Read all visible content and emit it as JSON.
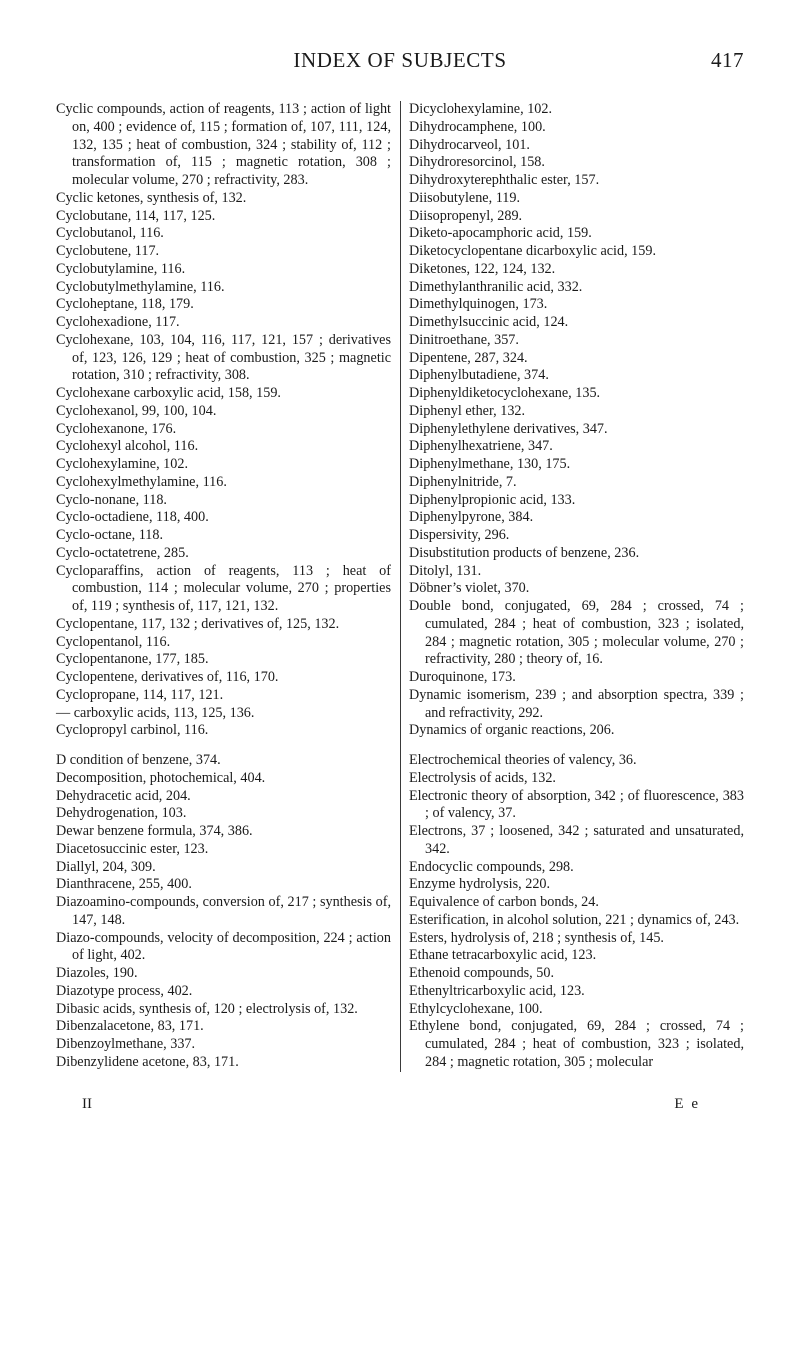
{
  "header": {
    "title": "INDEX OF SUBJECTS",
    "page_number": "417"
  },
  "footer": {
    "left": "II",
    "right": "E e"
  },
  "entries_col1": [
    "Cyclic compounds, action of reagents, 113 ; action of light on, 400 ; evi­dence of, 115 ; formation of, 107, 111, 124, 132, 135 ; heat of combus­tion, 324 ; stability of, 112 ; transfor­mation of, 115 ; magnetic rotation, 308 ; molecular volume, 270 ; refracti­vity, 283.",
    "Cyclic ketones, synthesis of, 132.",
    "Cyclobutane, 114, 117, 125.",
    "Cyclobutanol, 116.",
    "Cyclobutene, 117.",
    "Cyclobutylamine, 116.",
    "Cyclobutylmethylamine, 116.",
    "Cycloheptane, 118, 179.",
    "Cyclohexadione, 117.",
    "Cyclohexane, 103, 104, 116, 117, 121, 157 ; derivatives of, 123, 126, 129 ; heat of combustion, 325 ; magnetic rotation, 310 ; refractivity, 308.",
    "Cyclohexane carboxylic acid, 158, 159.",
    "Cyclohexanol, 99, 100, 104.",
    "Cyclohexanone, 176.",
    "Cyclohexyl alcohol, 116.",
    "Cyclohexylamine, 102.",
    "Cyclohexylmethylamine, 116.",
    "Cyclo-nonane, 118.",
    "Cyclo-octadiene, 118, 400.",
    "Cyclo-octane, 118.",
    "Cyclo-octatetrene, 285.",
    "Cycloparaffins, action of reagents, 113 ; heat of combustion, 114 ; molecular volume, 270 ; properties of, 119 ; synthesis of, 117, 121, 132.",
    "Cyclopentane, 117, 132 ; derivatives of, 125, 132.",
    "Cyclopentanol, 116.",
    "Cyclopentanone, 177, 185.",
    "Cyclopentene, derivatives of, 116, 170.",
    "Cyclopropane, 114, 117, 121.",
    "— carboxylic acids, 113, 125, 136.",
    "Cyclopropyl carbinol, 116."
  ],
  "entries_col1_b": [
    "D condition of benzene, 374.",
    "Decomposition, photochemical, 404.",
    "Dehydracetic acid, 204.",
    "Dehydrogenation, 103.",
    "Dewar benzene formula, 374, 386.",
    "Diacetosuccinic ester, 123.",
    "Diallyl, 204, 309.",
    "Dianthracene, 255, 400.",
    "Diazoamino-compounds, conversion of, 217 ; synthesis of, 147, 148.",
    "Diazo-compounds, velocity of decom­position, 224 ; action of light, 402.",
    "Diazoles, 190.",
    "Diazotype process, 402.",
    "Dibasic acids, synthesis of, 120 ; elec­trolysis of, 132.",
    "Dibenzalacetone, 83, 171.",
    "Dibenzoylmethane, 337.",
    "Dibenzylidene acetone, 83, 171."
  ],
  "entries_col2": [
    "Dicyclohexylamine, 102.",
    "Dihydrocamphene, 100.",
    "Dihydrocarveol, 101.",
    "Dihydroresorcinol, 158.",
    "Dihydroxyterephthalic ester, 157.",
    "Diisobutylene, 119.",
    "Diisopropenyl, 289.",
    "Diketo-apocamphoric acid, 159.",
    "Diketocyclopentane dicarboxylic acid, 159.",
    "Diketones, 122, 124, 132.",
    "Dimethylanthranilic acid, 332.",
    "Dimethylquinogen, 173.",
    "Dimethylsuccinic acid, 124.",
    "Dinitroethane, 357.",
    "Dipentene, 287, 324.",
    "Diphenylbutadiene, 374.",
    "Diphenyldiketocyclohexane, 135.",
    "Diphenyl ether, 132.",
    "Diphenylethylene derivatives, 347.",
    "Diphenylhexatriene, 347.",
    "Diphenylmethane, 130, 175.",
    "Diphenylnitride, 7.",
    "Diphenylpropionic acid, 133.",
    "Diphenylpyrone, 384.",
    "Dispersivity, 296.",
    "Disubstitution products of benzene, 236.",
    "Ditolyl, 131.",
    "Döbner’s violet, 370.",
    "Double bond, conjugated, 69, 284 ; crossed, 74 ; cumulated, 284 ; heat of combustion, 323 ; isolated, 284 ; magnetic rotation, 305 ; molecular volume, 270 ; refractivity, 280 ; theory of, 16.",
    "Duroquinone, 173.",
    "Dynamic isomerism, 239 ; and absorp­tion spectra, 339 ; and refractivity, 292.",
    "Dynamics of organic reactions, 206."
  ],
  "entries_col2_b": [
    "Electrochemical theories of valency, 36.",
    "Electrolysis of acids, 132.",
    "Electronic theory of absorption, 342 ; of fluorescence, 383 ; of valency, 37.",
    "Electrons, 37 ; loosened, 342 ; satu­rated and unsaturated, 342.",
    "Endocyclic compounds, 298.",
    "Enzyme hydrolysis, 220.",
    "Equivalence of carbon bonds, 24.",
    "Esterification, in alcohol solution, 221 ; dynamics of, 243.",
    "Esters, hydrolysis of, 218 ; synthesis of, 145.",
    "Ethane tetracarboxylic acid, 123.",
    "Ethenoid compounds, 50.",
    "Ethenyltricarboxylic acid, 123.",
    "Ethylcyclohexane, 100.",
    "Ethylene bond, conjugated, 69, 284 ; crossed, 74 ; cumulated, 284 ; heat of combustion, 323 ; isolated, 284 ; magnetic rotation, 305 ; molecular"
  ]
}
